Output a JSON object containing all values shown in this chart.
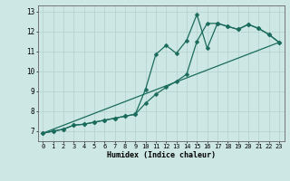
{
  "xlabel": "Humidex (Indice chaleur)",
  "xlim": [
    -0.5,
    23.5
  ],
  "ylim": [
    6.5,
    13.3
  ],
  "xtick_labels": [
    "0",
    "1",
    "2",
    "3",
    "4",
    "5",
    "6",
    "7",
    "8",
    "9",
    "10",
    "11",
    "12",
    "13",
    "14",
    "15",
    "16",
    "17",
    "18",
    "19",
    "20",
    "21",
    "22",
    "23"
  ],
  "ytick_values": [
    7,
    8,
    9,
    10,
    11,
    12,
    13
  ],
  "bg_color": "#cde8e4",
  "grid_color": "#b8d4d0",
  "line_color": "#1a6b5c",
  "line1_x": [
    0,
    1,
    2,
    3,
    4,
    5,
    6,
    7,
    8,
    9,
    10,
    11,
    12,
    13,
    14,
    15,
    16,
    17,
    18,
    19,
    20,
    21,
    22,
    23
  ],
  "line1_y": [
    6.9,
    7.0,
    7.1,
    7.3,
    7.35,
    7.45,
    7.55,
    7.65,
    7.75,
    7.85,
    9.1,
    10.85,
    11.3,
    10.9,
    11.55,
    12.85,
    11.15,
    12.4,
    12.25,
    12.1,
    12.35,
    12.15,
    11.85,
    11.45
  ],
  "line2_x": [
    0,
    1,
    2,
    3,
    4,
    5,
    6,
    7,
    8,
    9,
    10,
    11,
    12,
    13,
    14,
    15,
    16,
    17,
    18,
    19,
    20,
    21,
    22,
    23
  ],
  "line2_y": [
    6.9,
    7.0,
    7.1,
    7.3,
    7.35,
    7.45,
    7.55,
    7.65,
    7.75,
    7.85,
    8.4,
    8.85,
    9.2,
    9.5,
    9.85,
    11.5,
    12.4,
    12.4,
    12.25,
    12.1,
    12.35,
    12.15,
    11.85,
    11.45
  ],
  "line3_x": [
    0,
    23
  ],
  "line3_y": [
    6.9,
    11.45
  ],
  "marker": "D",
  "markersize": 2.5,
  "linewidth": 0.9
}
